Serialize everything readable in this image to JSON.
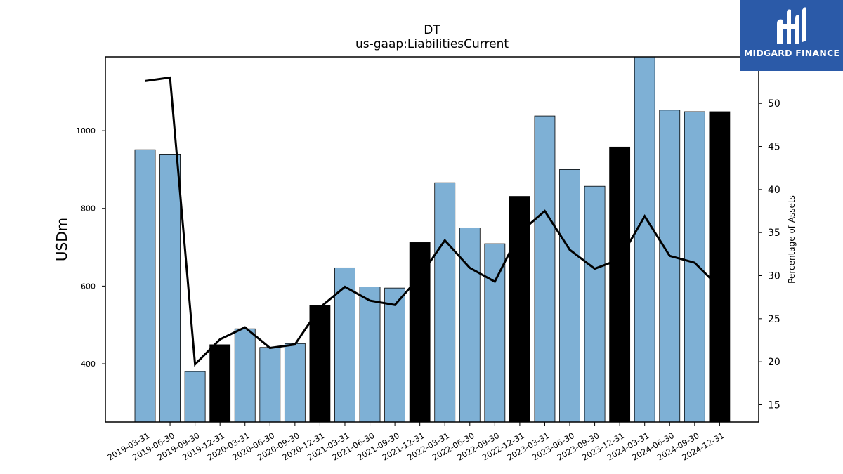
{
  "chart_data": {
    "type": "bar",
    "title": "DT",
    "subtitle": "us-gaap:LiabilitiesCurrent",
    "ylabel": "USDm",
    "y2label": "Percentage of Assets",
    "categories": [
      "2019-03-31",
      "2019-06-30",
      "2019-09-30",
      "2019-12-31",
      "2020-03-31",
      "2020-06-30",
      "2020-09-30",
      "2020-12-31",
      "2021-03-31",
      "2021-06-30",
      "2021-09-30",
      "2021-12-31",
      "2022-03-31",
      "2022-06-30",
      "2022-09-30",
      "2022-12-31",
      "2023-03-31",
      "2023-06-30",
      "2023-09-30",
      "2023-12-31",
      "2024-03-31",
      "2024-06-30",
      "2024-09-30",
      "2024-12-31"
    ],
    "series": [
      {
        "type": "bar",
        "axis": "left",
        "values": [
          951,
          938,
          380,
          449,
          490,
          442,
          452,
          550,
          647,
          598,
          595,
          712,
          866,
          750,
          709,
          831,
          1038,
          900,
          857,
          958,
          1190,
          1053,
          1049,
          1049
        ],
        "colors": [
          "#7eb0d5",
          "#7eb0d5",
          "#7eb0d5",
          "#000000",
          "#7eb0d5",
          "#7eb0d5",
          "#7eb0d5",
          "#000000",
          "#7eb0d5",
          "#7eb0d5",
          "#7eb0d5",
          "#000000",
          "#7eb0d5",
          "#7eb0d5",
          "#7eb0d5",
          "#000000",
          "#7eb0d5",
          "#7eb0d5",
          "#7eb0d5",
          "#000000",
          "#7eb0d5",
          "#7eb0d5",
          "#7eb0d5",
          "#000000"
        ]
      },
      {
        "type": "line",
        "axis": "right",
        "values": [
          52.6,
          53.0,
          19.7,
          22.6,
          24.0,
          21.6,
          22.0,
          26.3,
          28.7,
          27.1,
          26.6,
          29.9,
          34.1,
          30.9,
          29.3,
          35.0,
          37.5,
          33.0,
          30.8,
          31.9,
          36.9,
          32.3,
          31.5,
          28.6
        ],
        "color": "#000000"
      }
    ],
    "ylim": [
      250,
      1190
    ],
    "yticks": [
      400,
      600,
      800,
      1000
    ],
    "y2lim": [
      13.0,
      55.4
    ],
    "y2ticks": [
      15,
      20,
      25,
      30,
      35,
      40,
      45,
      50
    ],
    "bar_color": "#7eb0d5",
    "highlight_color": "#000000",
    "grid": false,
    "legend": "none"
  },
  "logo": {
    "text": "MIDGARD FINANCE",
    "icon": "midgard-logo-icon",
    "bg_color": "#2b5aa8"
  }
}
